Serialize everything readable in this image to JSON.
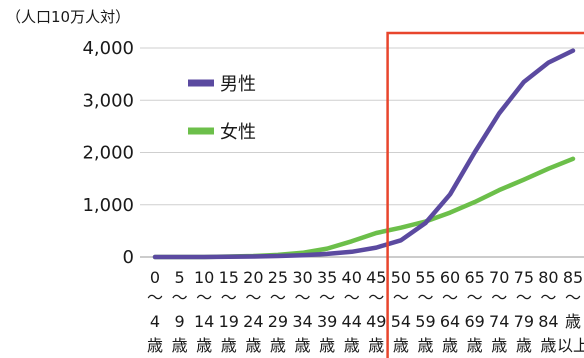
{
  "chart_data": {
    "type": "line",
    "ylabel": "（人口10万人対）",
    "ylim": [
      0,
      4000
    ],
    "yticks": [
      0,
      1000,
      2000,
      3000,
      4000
    ],
    "ytick_labels": [
      "0",
      "1,000",
      "2,000",
      "3,000",
      "4,000"
    ],
    "categories": [
      {
        "top": "0",
        "bottom": "4",
        "suffix": "歳"
      },
      {
        "top": "5",
        "bottom": "9",
        "suffix": "歳"
      },
      {
        "top": "10",
        "bottom": "14",
        "suffix": "歳"
      },
      {
        "top": "15",
        "bottom": "19",
        "suffix": "歳"
      },
      {
        "top": "20",
        "bottom": "24",
        "suffix": "歳"
      },
      {
        "top": "25",
        "bottom": "29",
        "suffix": "歳"
      },
      {
        "top": "30",
        "bottom": "34",
        "suffix": "歳"
      },
      {
        "top": "35",
        "bottom": "39",
        "suffix": "歳"
      },
      {
        "top": "40",
        "bottom": "44",
        "suffix": "歳"
      },
      {
        "top": "45",
        "bottom": "49",
        "suffix": "歳"
      },
      {
        "top": "50",
        "bottom": "54",
        "suffix": "歳"
      },
      {
        "top": "55",
        "bottom": "59",
        "suffix": "歳"
      },
      {
        "top": "60",
        "bottom": "64",
        "suffix": "歳"
      },
      {
        "top": "65",
        "bottom": "69",
        "suffix": "歳"
      },
      {
        "top": "70",
        "bottom": "74",
        "suffix": "歳"
      },
      {
        "top": "75",
        "bottom": "79",
        "suffix": "歳"
      },
      {
        "top": "80",
        "bottom": "84",
        "suffix": "歳"
      },
      {
        "top": "85",
        "bottom": "歳",
        "suffix": "以上"
      }
    ],
    "range_separator": "〜",
    "series": [
      {
        "name": "男性",
        "color": "#5b4aa0",
        "values": [
          0,
          0,
          0,
          5,
          10,
          20,
          35,
          60,
          100,
          180,
          320,
          650,
          1200,
          2000,
          2750,
          3350,
          3720,
          3950
        ]
      },
      {
        "name": "女性",
        "color": "#6cbf4a",
        "values": [
          0,
          0,
          0,
          10,
          20,
          40,
          80,
          160,
          300,
          460,
          560,
          680,
          850,
          1050,
          1280,
          1480,
          1690,
          1880
        ]
      }
    ],
    "legend_position": "top-left inside plot",
    "highlight": {
      "color": "#e8452c",
      "from_category_index": 10
    }
  }
}
